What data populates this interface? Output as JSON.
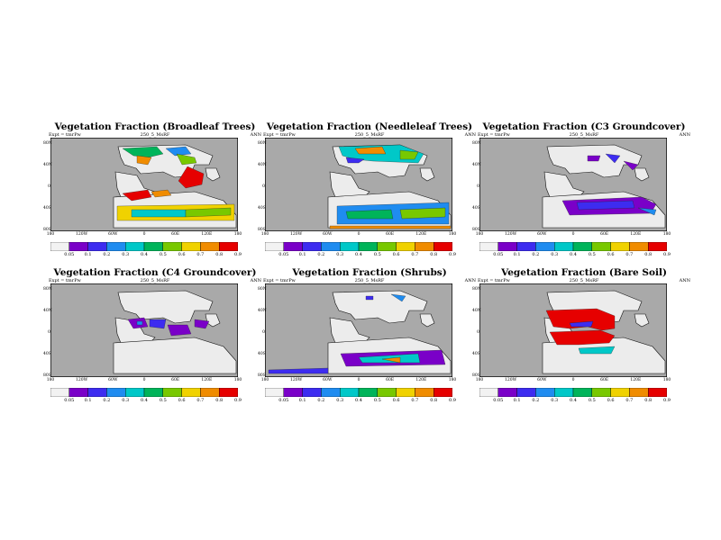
{
  "panels": [
    {
      "title": "Vegetation Fraction (Broadleaf Trees)",
      "expt": "Expt = tmrPw",
      "exp_id": "250_5_MsRF",
      "season": "ANN",
      "pattern": "broadleaf"
    },
    {
      "title": "Vegetation Fraction (Needleleaf Trees)",
      "expt": "Expt = tmrPw",
      "exp_id": "250_5_MsRF",
      "season": "ANN",
      "pattern": "needleleaf"
    },
    {
      "title": "Vegetation Fraction (C3 Groundcover)",
      "expt": "Expt = tmrPw",
      "exp_id": "250_5_MsRF",
      "season": "ANN",
      "pattern": "c3"
    },
    {
      "title": "Vegetation Fraction (C4 Groundcover)",
      "expt": "Expt = tmrPw",
      "exp_id": "250_5_MsRF",
      "season": "ANN",
      "pattern": "c4"
    },
    {
      "title": "Vegetation Fraction (Shrubs)",
      "expt": "Expt = tmrPw",
      "exp_id": "250_5_MsRF",
      "season": "ANN",
      "pattern": "shrubs"
    },
    {
      "title": "Vegetation Fraction (Bare Soil)",
      "expt": "Expt = tmrPw",
      "exp_id": "250_5_MsRF",
      "season": "ANN",
      "pattern": "baresoil"
    }
  ],
  "lat_labels": [
    "80N",
    "40N",
    "0",
    "40S",
    "80S"
  ],
  "lon_labels": [
    "180",
    "120W",
    "60W",
    "0",
    "60E",
    "120E",
    "180"
  ],
  "colorbar": {
    "labels": [
      "0.05",
      "0.1",
      "0.2",
      "0.3",
      "0.4",
      "0.5",
      "0.6",
      "0.7",
      "0.8",
      "0.9"
    ],
    "colors": [
      "#f2f2f2",
      "#7a00c8",
      "#3d2cf0",
      "#1f8cf0",
      "#00c8c8",
      "#00b45a",
      "#78c800",
      "#f0d200",
      "#f08c00",
      "#e60000"
    ]
  },
  "colors": {
    "ocean": "#a9a9a9",
    "land_bg": "#ececec"
  }
}
